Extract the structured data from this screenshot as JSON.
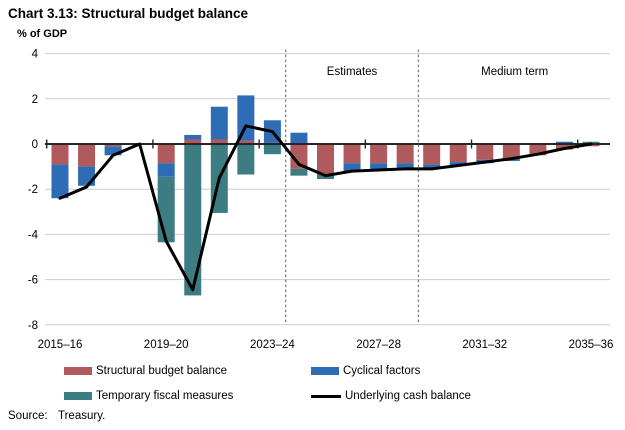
{
  "header": {
    "title": "Chart 3.13: Structural budget balance",
    "y_axis_label": "% of GDP"
  },
  "chart_data": {
    "type": "bar",
    "subtype": "stacked-bars-with-line",
    "title": "Chart 3.13: Structural budget balance",
    "ylabel": "% of GDP",
    "ylim": [
      -8,
      4
    ],
    "y_ticks": [
      4,
      2,
      0,
      -2,
      -4,
      -6,
      -8
    ],
    "grid": true,
    "legend_position": "bottom",
    "categories": [
      "2015–16",
      "2016–17",
      "2017–18",
      "2018–19",
      "2019–20",
      "2020–21",
      "2021–22",
      "2022–23",
      "2023–24",
      "2024–25",
      "2025–26",
      "2026–27",
      "2027–28",
      "2028–29",
      "2029–30",
      "2030–31",
      "2031–32",
      "2032–33",
      "2033–34",
      "2034–35",
      "2035–36"
    ],
    "x_tick_labels": [
      "2015–16",
      "2019–20",
      "2023–24",
      "2027–28",
      "2031–32",
      "2035–36"
    ],
    "x_tick_indices": [
      0,
      4,
      8,
      12,
      16,
      20
    ],
    "series": [
      {
        "name": "Structural budget balance",
        "type": "bar",
        "color": "#b15a5e",
        "values": [
          -0.9,
          -1.0,
          -0.1,
          0,
          -0.85,
          0.2,
          0.2,
          0.15,
          0.05,
          -1.1,
          -1.35,
          -0.85,
          -0.85,
          -0.85,
          -0.9,
          -0.8,
          -0.7,
          -0.65,
          -0.5,
          -0.25,
          -0.1
        ]
      },
      {
        "name": "Cyclical factors",
        "type": "bar",
        "color": "#2e6cb5",
        "values": [
          -1.5,
          -0.85,
          -0.4,
          0,
          -0.6,
          0.2,
          1.45,
          2.0,
          1.0,
          0.5,
          0,
          -0.35,
          -0.3,
          -0.25,
          -0.15,
          -0.15,
          -0.15,
          -0.1,
          0,
          0.1,
          0
        ]
      },
      {
        "name": "Temporary fiscal measures",
        "type": "bar",
        "color": "#3b7d83",
        "values": [
          0,
          0,
          0,
          0,
          -2.9,
          -6.7,
          -3.05,
          -1.35,
          -0.45,
          -0.3,
          -0.2,
          0,
          0,
          0,
          0,
          0,
          0,
          0,
          0,
          0,
          0.1
        ]
      },
      {
        "name": "Underlying cash balance",
        "type": "line",
        "color": "#000000",
        "values": [
          -2.4,
          -1.9,
          -0.5,
          0,
          -4.3,
          -6.45,
          -1.5,
          0.8,
          0.55,
          -0.9,
          -1.4,
          -1.2,
          -1.15,
          -1.1,
          -1.1,
          -0.95,
          -0.8,
          -0.65,
          -0.45,
          -0.2,
          0
        ]
      }
    ],
    "annotations": {
      "dividers_after_index": [
        8.5,
        13.5
      ],
      "region_labels": [
        {
          "text": "Estimates",
          "from_index": 8.5,
          "to_index": 13.5
        },
        {
          "text": "Medium term",
          "from_index": 13.5,
          "to_index": 20.75
        }
      ]
    },
    "colors": {
      "gridline": "#cccccc",
      "zero_axis": "#262626",
      "divider": "#808080",
      "text": "#000000"
    }
  },
  "source": {
    "label": "Source:",
    "text": "Treasury."
  }
}
